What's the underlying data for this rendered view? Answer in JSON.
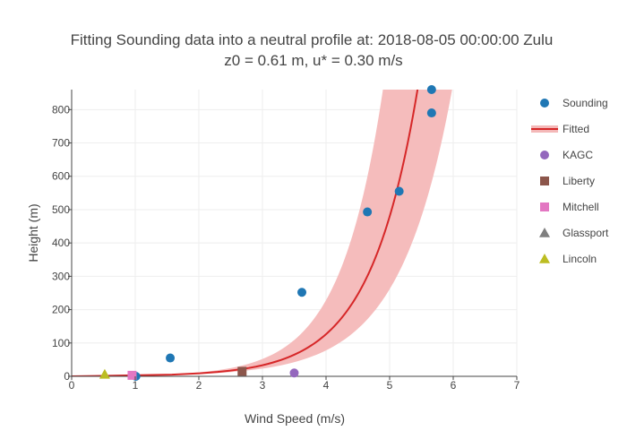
{
  "chart_data": {
    "type": "scatter",
    "title": "Fitting Sounding data into a neutral profile at: 2018-08-05 00:00:00 Zulu",
    "subtitle": "z0 = 0.61 m, u* = 0.30 m/s",
    "xlabel": "Wind Speed (m/s)",
    "ylabel": "Height (m)",
    "xlim": [
      0,
      7
    ],
    "ylim": [
      0,
      860
    ],
    "x_ticks": [
      "0",
      "1",
      "2",
      "3",
      "4",
      "5",
      "6",
      "7"
    ],
    "y_ticks": [
      "0",
      "100",
      "200",
      "300",
      "400",
      "500",
      "600",
      "700",
      "800"
    ],
    "grid": true,
    "legend_position": "right",
    "fit": {
      "name": "Fitted",
      "color": "#d62728",
      "band_color": "#f4b8b8",
      "u_star": 0.3,
      "z0": 0.61,
      "band_pct": 0.1
    },
    "series": [
      {
        "name": "Sounding",
        "marker": "circle",
        "color": "#1f77b4",
        "points": [
          [
            1.01,
            0
          ],
          [
            1.55,
            55
          ],
          [
            3.62,
            252
          ],
          [
            4.65,
            493
          ],
          [
            5.15,
            555
          ],
          [
            5.66,
            790
          ],
          [
            5.66,
            860
          ]
        ]
      },
      {
        "name": "Fitted",
        "marker": "line",
        "color": "#d62728",
        "points": []
      },
      {
        "name": "KAGC",
        "marker": "circle",
        "color": "#9467bd",
        "points": [
          [
            3.5,
            10
          ]
        ]
      },
      {
        "name": "Liberty",
        "marker": "square",
        "color": "#8c564b",
        "points": [
          [
            2.68,
            15
          ]
        ]
      },
      {
        "name": "Mitchell",
        "marker": "square",
        "color": "#e377c2",
        "points": [
          [
            0.95,
            3
          ]
        ]
      },
      {
        "name": "Glassport",
        "marker": "triangle",
        "color": "#7f7f7f",
        "points": []
      },
      {
        "name": "Lincoln",
        "marker": "triangle",
        "color": "#bcbd22",
        "points": [
          [
            0.52,
            6
          ]
        ]
      }
    ]
  }
}
